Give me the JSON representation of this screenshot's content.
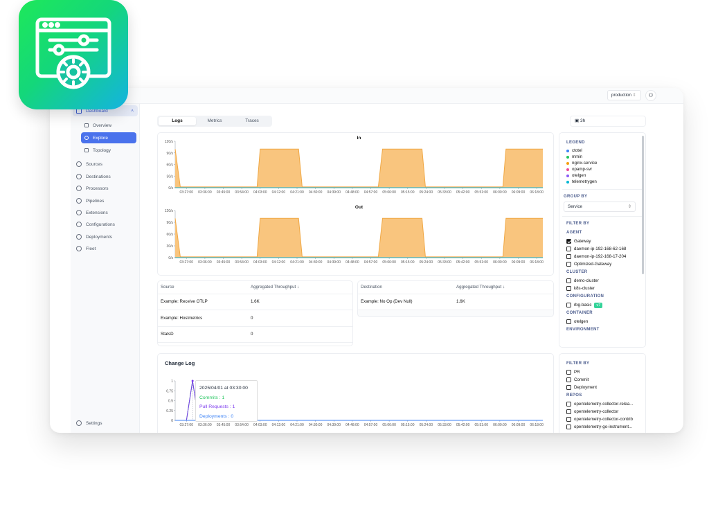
{
  "header": {
    "environment_select": "production",
    "user_icon": "user-icon"
  },
  "sidebar": {
    "items": [
      {
        "label": "Dashboard",
        "icon": "dashboard-icon"
      },
      {
        "label": "Overview",
        "icon": "chart-icon"
      },
      {
        "label": "Explore",
        "icon": "search-icon"
      },
      {
        "label": "Topology",
        "icon": "topology-icon"
      },
      {
        "label": "Sources",
        "icon": "sources-icon"
      },
      {
        "label": "Destinations",
        "icon": "destinations-icon"
      },
      {
        "label": "Processors",
        "icon": "processor-icon"
      },
      {
        "label": "Pipelines",
        "icon": "pipelines-icon"
      },
      {
        "label": "Extensions",
        "icon": "extensions-icon"
      },
      {
        "label": "Configurations",
        "icon": "bolt-icon"
      },
      {
        "label": "Deployments",
        "icon": "rocket-icon"
      },
      {
        "label": "Fleet",
        "icon": "link-icon"
      }
    ],
    "settings": "Settings"
  },
  "tabs": [
    "Logs",
    "Metrics",
    "Traces"
  ],
  "time_range": "3h",
  "colors": {
    "accent": "#4a72ec",
    "area_fill": "#f9c57e",
    "area_stroke": "#f0a845",
    "badge": "#34d399"
  },
  "chart_data": [
    {
      "type": "area",
      "title": "In",
      "y_ticks": [
        "0/s",
        "30/s",
        "60/s",
        "90/s",
        "120/s"
      ],
      "ylim": [
        0,
        120
      ],
      "x_ticks": [
        "03:27:00",
        "03:36:00",
        "03:45:00",
        "03:54:00",
        "04:03:00",
        "04:12:00",
        "04:21:00",
        "04:30:00",
        "04:39:00",
        "04:48:00",
        "04:57:00",
        "05:06:00",
        "05:15:00",
        "05:24:00",
        "05:33:00",
        "05:42:00",
        "05:51:00",
        "06:00:00",
        "06:09:00",
        "06:18:00"
      ],
      "xlim": [
        "03:21:30",
        "06:21:00"
      ],
      "series": [
        {
          "name": "nginx-service",
          "color": "#f0a845",
          "points": [
            [
              "03:21:30",
              100
            ],
            [
              "03:24:00",
              2
            ],
            [
              "04:01:30",
              2
            ],
            [
              "04:03:00",
              100
            ],
            [
              "04:21:45",
              100
            ],
            [
              "04:23:30",
              2
            ],
            [
              "05:00:40",
              2
            ],
            [
              "05:02:45",
              100
            ],
            [
              "05:22:00",
              100
            ],
            [
              "05:23:40",
              2
            ],
            [
              "06:01:30",
              2
            ],
            [
              "06:03:00",
              100
            ],
            [
              "06:21:00",
              100
            ]
          ]
        },
        {
          "name": "telemetrygen",
          "color": "#5fb6b8",
          "points": [
            [
              "03:21:30",
              0
            ],
            [
              "06:21:00",
              0
            ]
          ]
        }
      ]
    },
    {
      "type": "area",
      "title": "Out",
      "y_ticks": [
        "0/s",
        "30/s",
        "60/s",
        "90/s",
        "120/s"
      ],
      "ylim": [
        0,
        120
      ],
      "x_ticks": [
        "03:27:00",
        "03:36:00",
        "03:45:00",
        "03:54:00",
        "04:03:00",
        "04:12:00",
        "04:21:00",
        "04:30:00",
        "04:39:00",
        "04:48:00",
        "04:57:00",
        "05:06:00",
        "05:15:00",
        "05:24:00",
        "05:33:00",
        "05:42:00",
        "05:51:00",
        "06:00:00",
        "06:09:00",
        "06:18:00"
      ],
      "xlim": [
        "03:21:30",
        "06:21:00"
      ],
      "series": [
        {
          "name": "nginx-service",
          "color": "#f0a845",
          "points": [
            [
              "03:21:30",
              100
            ],
            [
              "03:24:00",
              2
            ],
            [
              "04:01:30",
              2
            ],
            [
              "04:03:00",
              100
            ],
            [
              "04:21:45",
              100
            ],
            [
              "04:23:30",
              2
            ],
            [
              "05:00:40",
              2
            ],
            [
              "05:02:45",
              100
            ],
            [
              "05:22:00",
              100
            ],
            [
              "05:23:40",
              2
            ],
            [
              "06:01:30",
              2
            ],
            [
              "06:03:00",
              100
            ],
            [
              "06:21:00",
              100
            ]
          ]
        },
        {
          "name": "telemetrygen",
          "color": "#5fb6b8",
          "points": [
            [
              "03:21:30",
              0
            ],
            [
              "06:21:00",
              0
            ]
          ]
        }
      ]
    },
    {
      "type": "line",
      "title": "Change Log",
      "y_ticks": [
        "0",
        "0.25",
        "0.5",
        "0.75",
        "1"
      ],
      "ylim": [
        0,
        1
      ],
      "x_ticks": [
        "03:27:00",
        "03:36:00",
        "03:45:00",
        "03:54:00",
        "04:03:00",
        "04:12:00",
        "04:21:00",
        "04:30:00",
        "04:39:00",
        "04:48:00",
        "04:57:00",
        "05:06:00",
        "05:15:00",
        "05:24:00",
        "05:33:00",
        "05:42:00",
        "05:51:00",
        "06:00:00",
        "06:09:00",
        "06:18:00"
      ],
      "xlim": [
        "03:21:30",
        "06:21:00"
      ],
      "series": [
        {
          "name": "Commits",
          "color": "#22c55e",
          "points": [
            [
              "03:21:30",
              0
            ],
            [
              "03:27:00",
              0
            ],
            [
              "03:30:00",
              1
            ],
            [
              "03:33:00",
              0
            ],
            [
              "06:21:00",
              0
            ]
          ]
        },
        {
          "name": "Pull Requests",
          "color": "#7c3aed",
          "points": [
            [
              "03:21:30",
              0
            ],
            [
              "03:27:00",
              0
            ],
            [
              "03:30:00",
              1
            ],
            [
              "03:33:00",
              0
            ],
            [
              "06:21:00",
              0
            ]
          ]
        },
        {
          "name": "Deployments",
          "color": "#3b82f6",
          "points": [
            [
              "03:21:30",
              0
            ],
            [
              "06:21:00",
              0
            ]
          ]
        }
      ],
      "tooltip": {
        "title": "2025/04/01 at 03:30:00",
        "commits": "Commits : 1",
        "pull_requests": "Pull Requests : 1",
        "deployments": "Deployments : 0"
      }
    }
  ],
  "sources_table": {
    "headers": [
      "Source",
      "Aggregated Throughput"
    ],
    "rows": [
      [
        "Example: Receive OTLP",
        "1.6K"
      ],
      [
        "Example: Hostmetrics",
        "0"
      ],
      [
        "StatsD",
        "0"
      ]
    ]
  },
  "destinations_table": {
    "headers": [
      "Destination",
      "Aggregated Throughput"
    ],
    "rows": [
      [
        "Example: No Op (Dev Null)",
        "1.6K"
      ]
    ]
  },
  "filters": {
    "legend_title": "LEGEND",
    "legend": [
      {
        "label": "ctotel",
        "color": "#3b82f6"
      },
      {
        "label": "mmin",
        "color": "#22c55e"
      },
      {
        "label": "nginx-service",
        "color": "#f59e0b"
      },
      {
        "label": "opamp-svr",
        "color": "#ec4899"
      },
      {
        "label": "otelgen",
        "color": "#8b5cf6"
      },
      {
        "label": "telemetrygen",
        "color": "#06b6d4"
      }
    ],
    "group_by_title": "GROUP BY",
    "group_by_value": "Service",
    "filter_by_title": "FILTER BY",
    "agent_title": "AGENT",
    "agents": [
      {
        "label": "Gateway",
        "checked": true
      },
      {
        "label": "daemon-ip-192-168-62-168",
        "checked": false
      },
      {
        "label": "daemon-ip-192-168-17-204",
        "checked": false
      },
      {
        "label": "Optimized-Gateway",
        "checked": false
      }
    ],
    "cluster_title": "CLUSTER",
    "clusters": [
      "demo-cluster",
      "k8s-cluster"
    ],
    "configuration_title": "CONFIGURATION",
    "configuration": {
      "label": "rbg-basic",
      "badge": "v7"
    },
    "container_title": "CONTAINER",
    "containers": [
      "otelgen"
    ],
    "environment_title": "ENVIRONMENT"
  },
  "changelog_filters": {
    "filter_by_title": "FILTER BY",
    "types": [
      "PR",
      "Commit",
      "Deployment"
    ],
    "repos_title": "REPOS",
    "repos": [
      "opentelemetry-collector-relea...",
      "opentelemetry-collector",
      "opentelemetry-collector-contrib",
      "opentelemetry-go-instrument..."
    ]
  }
}
